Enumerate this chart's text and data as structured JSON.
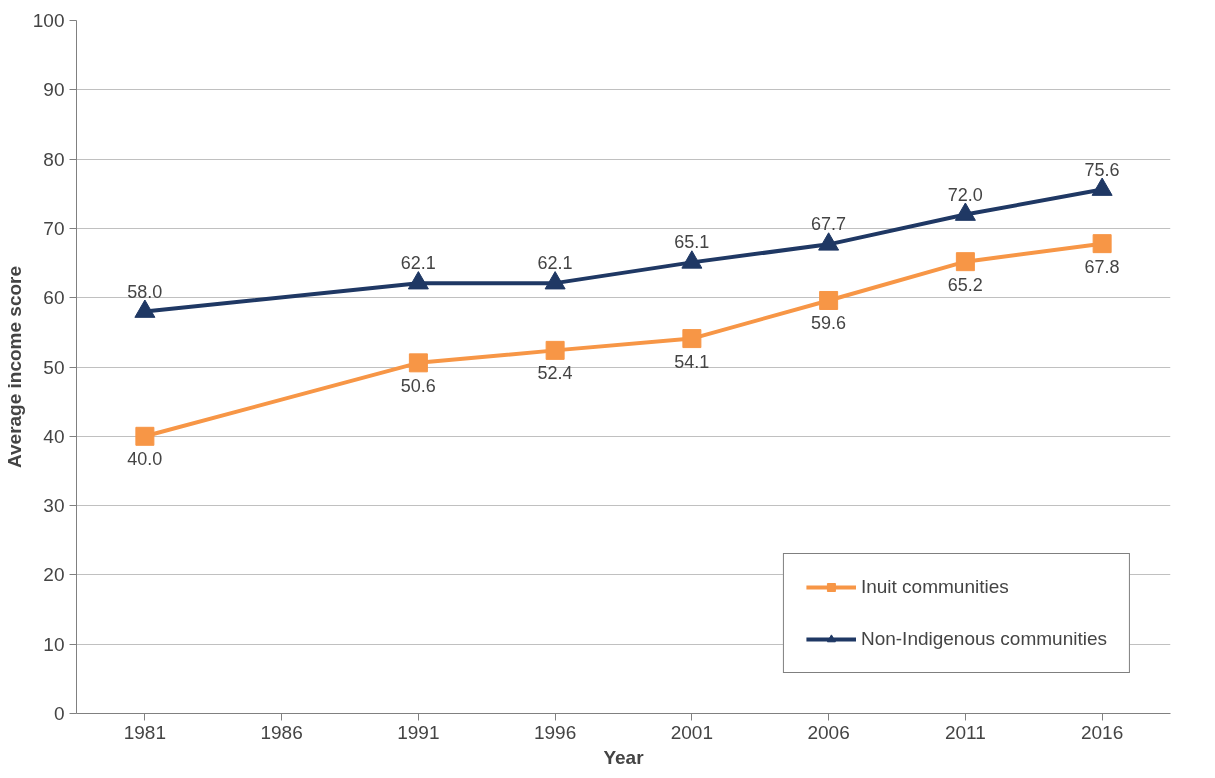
{
  "chart_data": {
    "type": "line",
    "xlabel": "Year",
    "ylabel": "Average income score",
    "x": [
      1981,
      1991,
      1996,
      2001,
      2006,
      2011,
      2016
    ],
    "xlim": [
      1978.5,
      2018.5
    ],
    "xticks": [
      1981,
      1986,
      1991,
      1996,
      2001,
      2006,
      2011,
      2016
    ],
    "ylim": [
      0,
      100
    ],
    "yticks": [
      0,
      10,
      20,
      30,
      40,
      50,
      60,
      70,
      80,
      90,
      100
    ],
    "grid": "y",
    "legend": "bottom right",
    "series": [
      {
        "name": "Inuit communities",
        "color": "#f79646",
        "marker": "square",
        "values": [
          40.0,
          50.6,
          52.4,
          54.1,
          59.6,
          65.2,
          67.8
        ],
        "value_labels": [
          "40.0",
          "50.6",
          "52.4",
          "54.1",
          "59.6",
          "65.2",
          "67.8"
        ]
      },
      {
        "name": "Non-Indigenous communities",
        "color": "#1f3864",
        "marker": "triangle",
        "values": [
          58.0,
          62.1,
          62.1,
          65.1,
          67.7,
          72.0,
          75.6
        ],
        "value_labels": [
          "58.0",
          "62.1",
          "62.1",
          "65.1",
          "67.7",
          "72.0",
          "75.6"
        ]
      }
    ]
  }
}
